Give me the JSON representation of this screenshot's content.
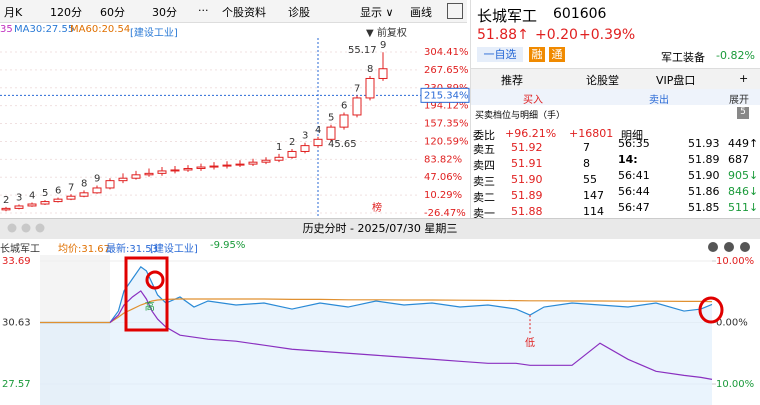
{
  "toolbar": {
    "tabs": [
      "月K",
      "120分",
      "60分",
      "30分",
      "···",
      "个股资料",
      "诊股",
      "显示 ∨",
      "画线"
    ]
  },
  "kline": {
    "ma_info": [
      "35",
      "MA30:27.55",
      "MA60:20.54",
      "[建设工业]"
    ],
    "adjust": "▼ 前复权",
    "ylim": [
      -26.47,
      304.41
    ],
    "yticks": [
      {
        "value": 304.41,
        "label": "304.41%"
      },
      {
        "value": 267.65,
        "label": "267.65%"
      },
      {
        "value": 230.89,
        "label": "230.89%"
      },
      {
        "value": 194.12,
        "label": "194.12%"
      },
      {
        "value": 157.35,
        "label": "157.35%"
      },
      {
        "value": 120.59,
        "label": "120.59%"
      },
      {
        "value": 83.82,
        "label": "83.82%"
      },
      {
        "value": 47.06,
        "label": "47.06%"
      },
      {
        "value": 10.29,
        "label": "10.29%"
      },
      {
        "value": -26.47,
        "label": "-26.47%"
      }
    ],
    "current": {
      "value": 215.34,
      "label": "215.34%"
    },
    "candles": [
      [
        -20,
        -17,
        -14,
        -23
      ],
      [
        -17,
        -12,
        -9,
        -19
      ],
      [
        -12,
        -8,
        -5,
        -14
      ],
      [
        -8,
        -3,
        0,
        -10
      ],
      [
        -3,
        2,
        5,
        -5
      ],
      [
        2,
        8,
        12,
        0
      ],
      [
        8,
        15,
        20,
        6
      ],
      [
        15,
        25,
        30,
        13
      ],
      [
        25,
        40,
        45,
        22
      ],
      [
        40,
        45,
        55,
        35
      ],
      [
        45,
        52,
        60,
        42
      ],
      [
        52,
        55,
        65,
        48
      ],
      [
        55,
        60,
        68,
        50
      ],
      [
        60,
        62,
        70,
        55
      ],
      [
        62,
        65,
        72,
        58
      ],
      [
        65,
        68,
        75,
        60
      ],
      [
        68,
        70,
        78,
        63
      ],
      [
        70,
        72,
        80,
        65
      ],
      [
        72,
        74,
        82,
        68
      ],
      [
        74,
        78,
        85,
        70
      ],
      [
        78,
        82,
        88,
        74
      ],
      [
        82,
        88,
        95,
        78
      ],
      [
        88,
        100,
        105,
        85
      ],
      [
        100,
        112,
        118,
        96
      ],
      [
        112,
        125,
        130,
        108
      ],
      [
        125,
        150,
        155,
        120
      ],
      [
        150,
        175,
        180,
        145
      ],
      [
        175,
        210,
        215,
        170
      ],
      [
        210,
        250,
        255,
        205
      ],
      [
        250,
        270,
        304,
        245
      ]
    ],
    "seq_labels": [
      "2",
      "3",
      "4",
      "5",
      "6",
      "7",
      "8",
      "9",
      null,
      null,
      null,
      null,
      null,
      null,
      null,
      null,
      null,
      null,
      null,
      null,
      null,
      "1",
      "2",
      "3",
      "4",
      "5",
      "6",
      "7",
      "8",
      "9"
    ],
    "high_label": "55.17",
    "low_label": "45.65",
    "badge": "榜"
  },
  "quote": {
    "name": "长城军工",
    "code": "601606",
    "price": "51.88↑",
    "change": "+0.20",
    "pct": "+0.39%",
    "watch": "一自选",
    "badges": [
      "融",
      "通"
    ],
    "sector": "军工装备",
    "sector_pct": "-0.82%"
  },
  "tabs": [
    "推荐",
    "论股堂",
    "VIP盘口",
    "+"
  ],
  "trade_tabs": [
    "买入",
    "卖出",
    "展开"
  ],
  "book_title": "买卖档位与明细（手）",
  "book_badge": "5",
  "ratio": {
    "label": "委比",
    "pct": "+96.21%",
    "diff": "+16801"
  },
  "detail_title": "明细",
  "book": [
    [
      "卖五",
      "51.92",
      "7"
    ],
    [
      "卖四",
      "51.91",
      "8"
    ],
    [
      "卖三",
      "51.90",
      "55"
    ],
    [
      "卖二",
      "51.89",
      "147"
    ],
    [
      "卖一",
      "51.88",
      "114"
    ]
  ],
  "trades": [
    [
      "56:35",
      "51.93",
      "449↑"
    ],
    [
      "14:",
      "51.89",
      "687"
    ],
    [
      "56:41",
      "51.90",
      "905↓"
    ],
    [
      "56:44",
      "51.86",
      "846↓"
    ],
    [
      "56:47",
      "51.85",
      "511↓"
    ]
  ],
  "intraday": {
    "title": "历史分时 - 2025/07/30 星期三",
    "info": [
      "长城军工",
      "均价:31.67",
      "最新:31.53",
      "[建设工业]",
      "-9.95%"
    ],
    "xlim": [
      0,
      240
    ],
    "ylim": [
      27.57,
      33.69
    ],
    "yticks": [
      33.69,
      30.63,
      27.57
    ],
    "y2lim": [
      -10,
      10
    ],
    "y2ticks": [
      {
        "value": 10,
        "label": "10.00%"
      },
      {
        "value": 0,
        "label": "0.00%"
      },
      {
        "value": -10,
        "label": "10.00%"
      }
    ],
    "x": [
      0,
      25,
      28,
      30,
      33,
      36,
      38,
      40,
      42,
      45,
      50,
      55,
      60,
      70,
      80,
      90,
      100,
      110,
      120,
      130,
      140,
      150,
      160,
      170,
      175,
      180,
      190,
      200,
      210,
      220,
      230,
      236,
      240
    ],
    "price": [
      30.63,
      30.63,
      31.2,
      32.2,
      32.8,
      33.4,
      33.2,
      32.6,
      32.0,
      31.6,
      31.9,
      31.4,
      31.7,
      31.5,
      31.6,
      31.3,
      31.6,
      31.4,
      31.7,
      31.5,
      31.6,
      31.4,
      31.5,
      31.3,
      31.0,
      31.4,
      31.6,
      31.5,
      31.4,
      31.6,
      31.2,
      31.3,
      31.53
    ],
    "avg": [
      30.63,
      30.63,
      30.9,
      31.1,
      31.3,
      31.5,
      31.6,
      31.7,
      31.75,
      31.78,
      31.8,
      31.8,
      31.8,
      31.8,
      31.8,
      31.78,
      31.78,
      31.76,
      31.76,
      31.75,
      31.75,
      31.74,
      31.73,
      31.72,
      31.71,
      31.71,
      31.7,
      31.7,
      31.69,
      31.69,
      31.68,
      31.68,
      31.67
    ],
    "sector": [
      null,
      30.63,
      31.0,
      31.5,
      31.9,
      32.2,
      31.8,
      31.2,
      30.8,
      30.4,
      30.0,
      29.9,
      29.8,
      29.7,
      29.5,
      29.3,
      29.2,
      29.1,
      29.0,
      28.9,
      28.8,
      28.7,
      28.6,
      28.6,
      28.5,
      28.5,
      28.5,
      29.6,
      28.8,
      28.2,
      28.0,
      27.9,
      27.8
    ],
    "high_marker": "高",
    "low_marker": "低"
  }
}
